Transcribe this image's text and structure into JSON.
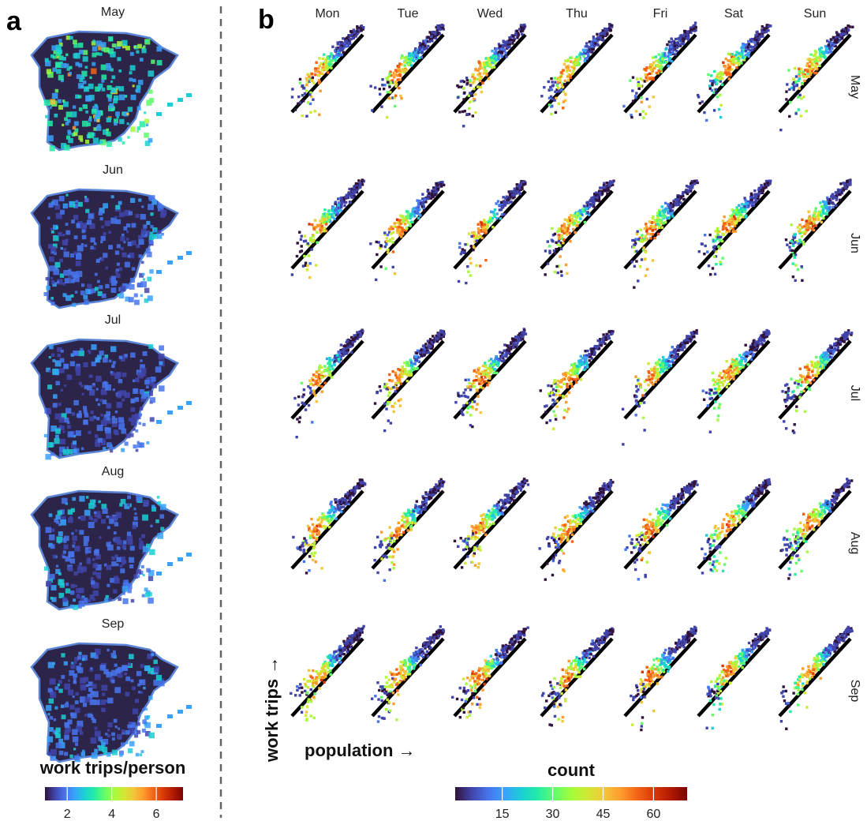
{
  "panels": {
    "a": {
      "letter": "a",
      "maps": [
        {
          "month": "May"
        },
        {
          "month": "Jun"
        },
        {
          "month": "Jul"
        },
        {
          "month": "Aug"
        },
        {
          "month": "Sep"
        }
      ],
      "colorbar": {
        "title": "work trips/person",
        "ticks": [
          2,
          4,
          6
        ],
        "range": [
          1,
          7.2
        ]
      }
    },
    "b": {
      "letter": "b",
      "columns": [
        "Mon",
        "Tue",
        "Wed",
        "Thu",
        "Fri",
        "Sat",
        "Sun"
      ],
      "rows": [
        "May",
        "Jun",
        "Jul",
        "Aug",
        "Sep"
      ],
      "xlabel": "population →",
      "ylabel": "work trips →",
      "colorbar": {
        "title": "count",
        "ticks": [
          15,
          30,
          45,
          60
        ],
        "range": [
          1,
          70
        ]
      }
    }
  },
  "colors": {
    "turbo": [
      "#30123b",
      "#4145ab",
      "#4675ed",
      "#39a2fc",
      "#1bcfd4",
      "#24eca6",
      "#61fc6c",
      "#a4fc3b",
      "#d1e834",
      "#f3c63a",
      "#fe9b2d",
      "#f36315",
      "#d93806",
      "#b11901",
      "#7a0403"
    ],
    "dark_fill": "#2c2449",
    "divider": "#666666",
    "reference_line": "#000000"
  },
  "chart_data": {
    "type": "heatmap",
    "layout": "5 months x 7 weekdays grid of hexbin density plots",
    "xlabel": "population →",
    "ylabel": "work trips →",
    "color_label": "count",
    "color_ticks": [
      15,
      30,
      45,
      60
    ],
    "rows": [
      "May",
      "Jun",
      "Jul",
      "Aug",
      "Sep"
    ],
    "columns": [
      "Mon",
      "Tue",
      "Wed",
      "Thu",
      "Fri",
      "Sat",
      "Sun"
    ],
    "reference_line": "diagonal line drawn in every panel"
  }
}
